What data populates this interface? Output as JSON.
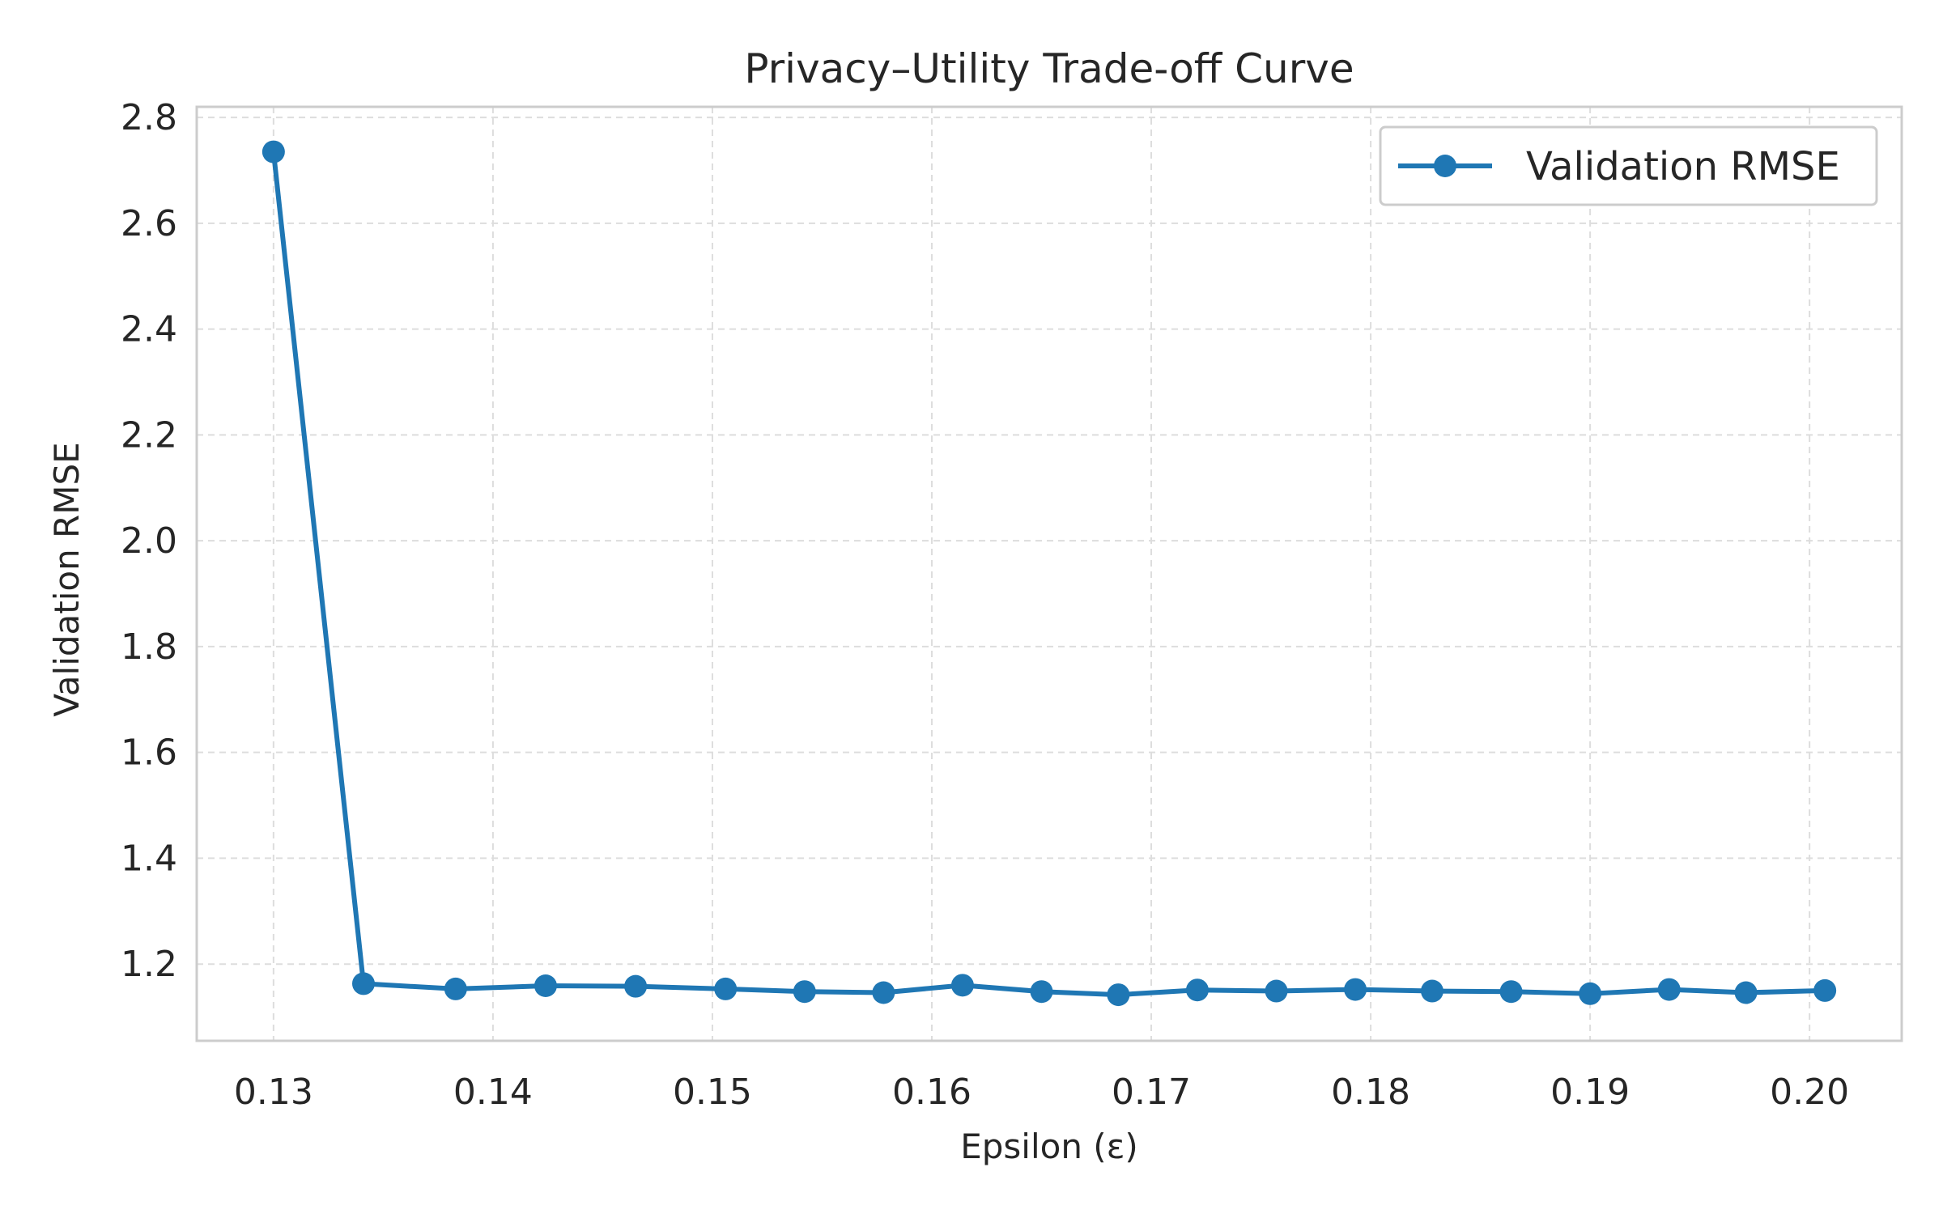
{
  "chart_data": {
    "type": "line",
    "title": "Privacy–Utility Trade-off Curve",
    "xlabel": "Epsilon (ε)",
    "ylabel": "Validation RMSE",
    "xlim": [
      0.1265,
      0.2042
    ],
    "ylim": [
      1.055,
      2.82
    ],
    "x_ticks": [
      "0.13",
      "0.14",
      "0.15",
      "0.16",
      "0.17",
      "0.18",
      "0.19",
      "0.20"
    ],
    "x_tick_values": [
      0.13,
      0.14,
      0.15,
      0.16,
      0.17,
      0.18,
      0.19,
      0.2
    ],
    "y_ticks": [
      "1.2",
      "1.4",
      "1.6",
      "1.8",
      "2.0",
      "2.2",
      "2.4",
      "2.6",
      "2.8"
    ],
    "y_tick_values": [
      1.2,
      1.4,
      1.6,
      1.8,
      2.0,
      2.2,
      2.4,
      2.6,
      2.8
    ],
    "grid": true,
    "legend_position": "top-right",
    "series": [
      {
        "name": "Validation RMSE",
        "color": "#1f77b4",
        "marker": "circle",
        "x": [
          0.13,
          0.1341,
          0.1383,
          0.1424,
          0.1465,
          0.1506,
          0.1542,
          0.1578,
          0.1614,
          0.165,
          0.1685,
          0.1721,
          0.1757,
          0.1793,
          0.1828,
          0.1864,
          0.19,
          0.1936,
          0.1971,
          0.2007
        ],
        "y": [
          2.735,
          1.163,
          1.153,
          1.159,
          1.158,
          1.153,
          1.148,
          1.146,
          1.16,
          1.148,
          1.142,
          1.151,
          1.149,
          1.152,
          1.149,
          1.148,
          1.144,
          1.152,
          1.146,
          1.15
        ]
      }
    ]
  }
}
